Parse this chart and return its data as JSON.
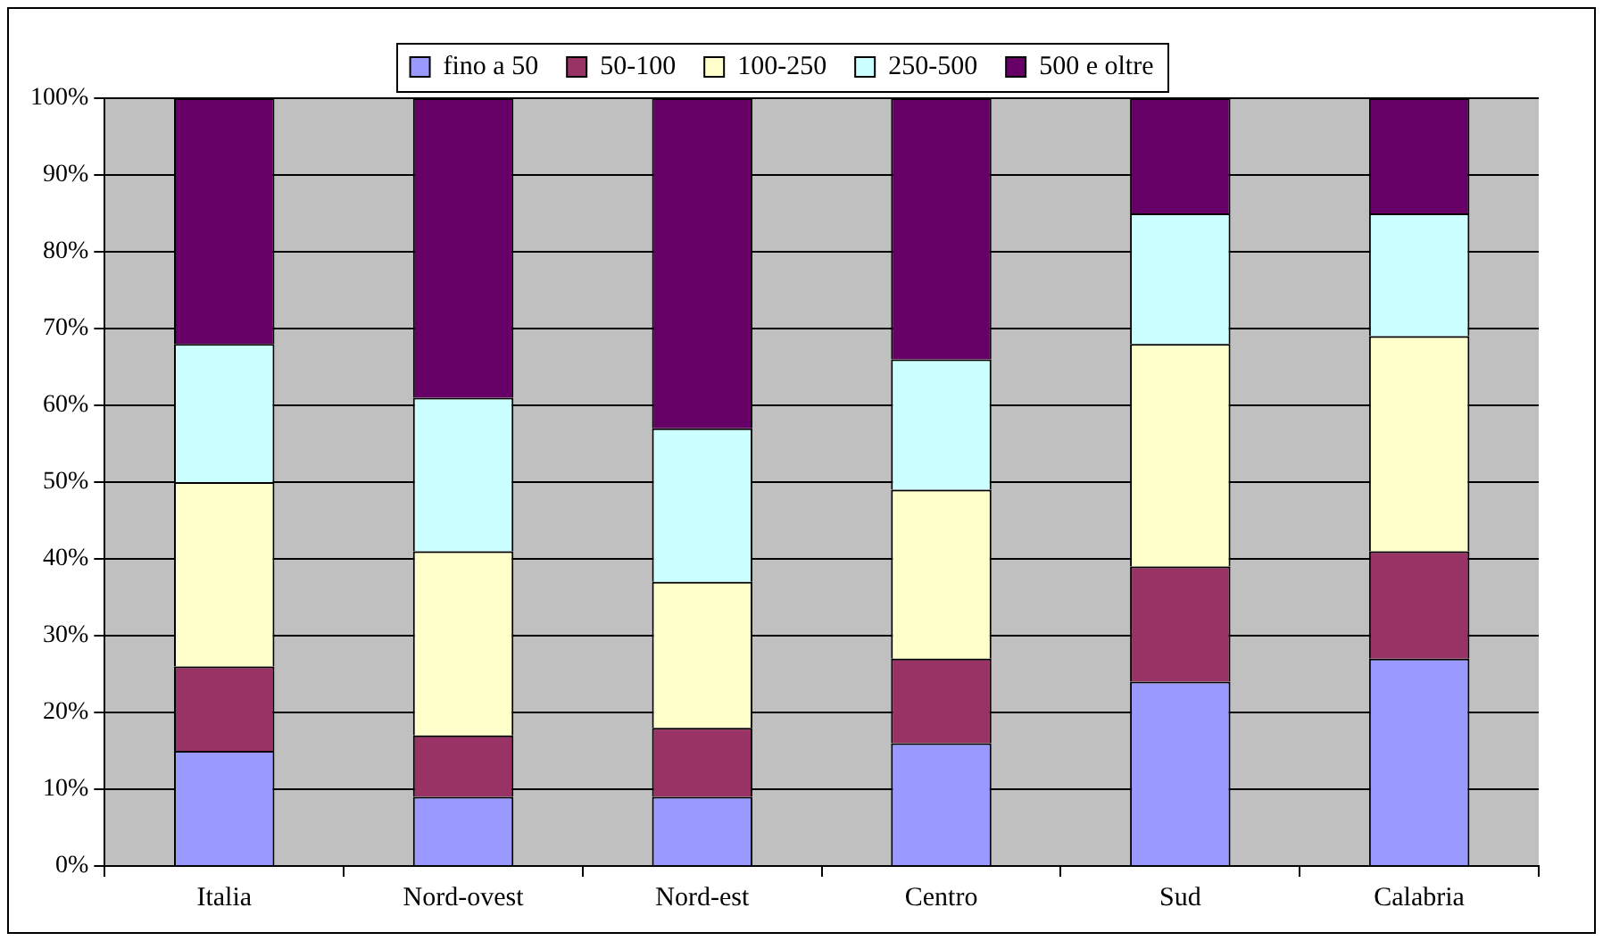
{
  "chart_data": {
    "type": "bar",
    "stacked": true,
    "categories": [
      "Italia",
      "Nord-ovest",
      "Nord-est",
      "Centro",
      "Sud",
      "Calabria"
    ],
    "series": [
      {
        "name": "fino a 50",
        "color": "#9999ff",
        "values": [
          15,
          9,
          9,
          16,
          24,
          27
        ]
      },
      {
        "name": "50-100",
        "color": "#993366",
        "values": [
          11,
          8,
          9,
          11,
          15,
          14
        ]
      },
      {
        "name": "100-250",
        "color": "#ffffcc",
        "values": [
          24,
          24,
          19,
          22,
          29,
          28
        ]
      },
      {
        "name": "250-500",
        "color": "#ccffff",
        "values": [
          18,
          20,
          20,
          17,
          17,
          16
        ]
      },
      {
        "name": "500 e oltre",
        "color": "#660066",
        "values": [
          32,
          39,
          43,
          34,
          15,
          15
        ]
      }
    ],
    "ylim": [
      0,
      100
    ],
    "yticks": [
      {
        "value": 0,
        "label": "0%"
      },
      {
        "value": 10,
        "label": "10%"
      },
      {
        "value": 20,
        "label": "20%"
      },
      {
        "value": 30,
        "label": "30%"
      },
      {
        "value": 40,
        "label": "40%"
      },
      {
        "value": 50,
        "label": "50%"
      },
      {
        "value": 60,
        "label": "60%"
      },
      {
        "value": 70,
        "label": "70%"
      },
      {
        "value": 80,
        "label": "80%"
      },
      {
        "value": 90,
        "label": "90%"
      },
      {
        "value": 100,
        "label": "100%"
      }
    ],
    "grid": "y",
    "legend": "top"
  }
}
